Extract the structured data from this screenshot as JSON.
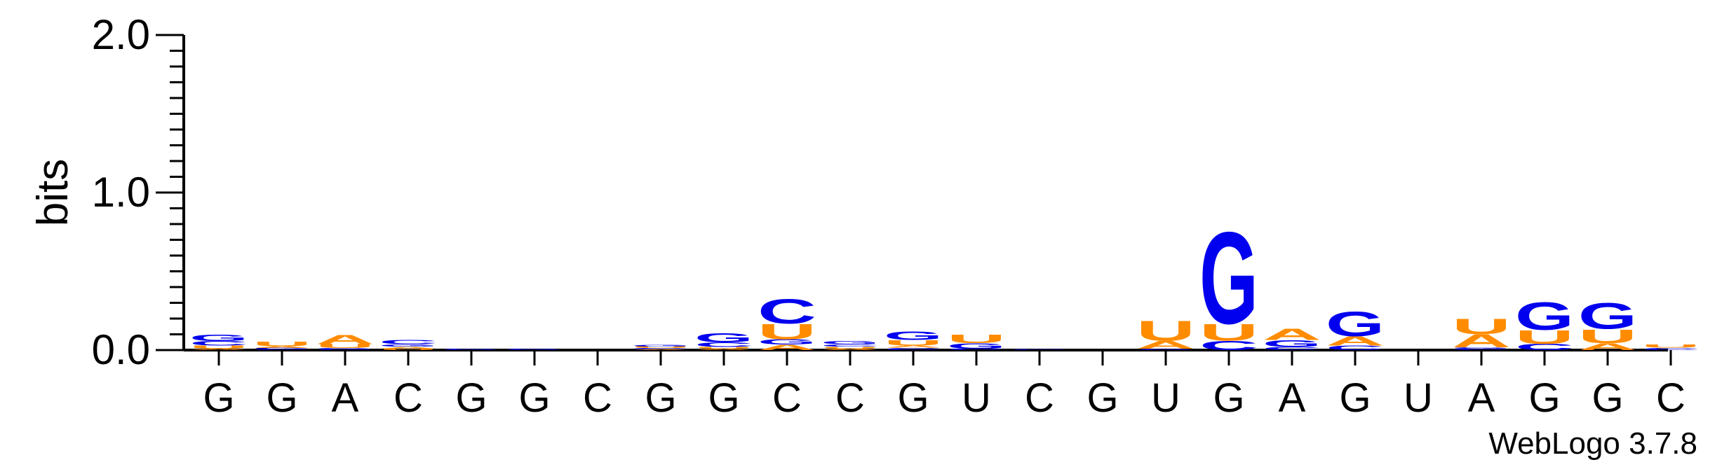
{
  "chart_data": {
    "type": "sequence-logo",
    "ylabel": "bits",
    "ylim": [
      0,
      2.0
    ],
    "yticks": [
      {
        "value": 0.0,
        "label": "0.0"
      },
      {
        "value": 1.0,
        "label": "1.0"
      },
      {
        "value": 2.0,
        "label": "2.0"
      }
    ],
    "categories": [
      "G",
      "G",
      "A",
      "C",
      "G",
      "G",
      "C",
      "G",
      "G",
      "C",
      "C",
      "G",
      "U",
      "C",
      "G",
      "U",
      "G",
      "A",
      "G",
      "U",
      "A",
      "G",
      "G",
      "C"
    ],
    "colors": {
      "G": "#0000ee",
      "C": "#0000ee",
      "A": "#ff8c00",
      "U": "#ff8c00"
    },
    "positions": [
      {
        "stack": [
          {
            "b": "A",
            "h": 0.008
          },
          {
            "b": "U",
            "h": 0.02
          },
          {
            "b": "C",
            "h": 0.03
          },
          {
            "b": "G",
            "h": 0.04
          }
        ]
      },
      {
        "stack": [
          {
            "b": "C",
            "h": 0.006
          },
          {
            "b": "G",
            "h": 0.008
          },
          {
            "b": "A",
            "h": 0.01
          },
          {
            "b": "U",
            "h": 0.03
          }
        ]
      },
      {
        "stack": [
          {
            "b": "C",
            "h": 0.005
          },
          {
            "b": "G",
            "h": 0.008
          },
          {
            "b": "U",
            "h": 0.025
          },
          {
            "b": "A",
            "h": 0.06
          }
        ]
      },
      {
        "stack": [
          {
            "b": "U",
            "h": 0.01
          },
          {
            "b": "A",
            "h": 0.012
          },
          {
            "b": "G",
            "h": 0.015
          },
          {
            "b": "C",
            "h": 0.025
          }
        ]
      },
      {
        "stack": [
          {
            "b": "G",
            "h": 0.01
          }
        ]
      },
      {
        "stack": [
          {
            "b": "G",
            "h": 0.01
          }
        ]
      },
      {
        "stack": []
      },
      {
        "stack": [
          {
            "b": "A",
            "h": 0.005
          },
          {
            "b": "C",
            "h": 0.008
          },
          {
            "b": "U",
            "h": 0.01
          },
          {
            "b": "G",
            "h": 0.012
          }
        ]
      },
      {
        "stack": [
          {
            "b": "A",
            "h": 0.008
          },
          {
            "b": "U",
            "h": 0.012
          },
          {
            "b": "C",
            "h": 0.03
          },
          {
            "b": "G",
            "h": 0.06
          }
        ]
      },
      {
        "stack": [
          {
            "b": "A",
            "h": 0.035
          },
          {
            "b": "G",
            "h": 0.035
          },
          {
            "b": "U",
            "h": 0.1
          },
          {
            "b": "C",
            "h": 0.16
          }
        ]
      },
      {
        "stack": [
          {
            "b": "A",
            "h": 0.01
          },
          {
            "b": "U",
            "h": 0.012
          },
          {
            "b": "C",
            "h": 0.015
          },
          {
            "b": "G",
            "h": 0.02
          }
        ]
      },
      {
        "stack": [
          {
            "b": "C",
            "h": 0.015
          },
          {
            "b": "A",
            "h": 0.015
          },
          {
            "b": "U",
            "h": 0.035
          },
          {
            "b": "G",
            "h": 0.055
          }
        ]
      },
      {
        "stack": [
          {
            "b": "C",
            "h": 0.01
          },
          {
            "b": "G",
            "h": 0.035
          },
          {
            "b": "U",
            "h": 0.055
          }
        ]
      },
      {
        "stack": [
          {
            "b": "C",
            "h": 0.005
          }
        ]
      },
      {
        "stack": []
      },
      {
        "stack": [
          {
            "b": "G",
            "h": 0.01
          },
          {
            "b": "A",
            "h": 0.05
          },
          {
            "b": "U",
            "h": 0.13
          }
        ]
      },
      {
        "stack": [
          {
            "b": "C",
            "h": 0.06
          },
          {
            "b": "U",
            "h": 0.11
          },
          {
            "b": "G",
            "h": 0.6
          }
        ]
      },
      {
        "stack": [
          {
            "b": "C",
            "h": 0.02
          },
          {
            "b": "G",
            "h": 0.045
          },
          {
            "b": "A",
            "h": 0.075
          }
        ]
      },
      {
        "stack": [
          {
            "b": "C",
            "h": 0.03
          },
          {
            "b": "A",
            "h": 0.06
          },
          {
            "b": "G",
            "h": 0.16
          }
        ]
      },
      {
        "stack": []
      },
      {
        "stack": [
          {
            "b": "C",
            "h": 0.008
          },
          {
            "b": "G",
            "h": 0.01
          },
          {
            "b": "A",
            "h": 0.085
          },
          {
            "b": "U",
            "h": 0.1
          }
        ]
      },
      {
        "stack": [
          {
            "b": "C",
            "h": 0.04
          },
          {
            "b": "U",
            "h": 0.09
          },
          {
            "b": "G",
            "h": 0.18
          }
        ]
      },
      {
        "stack": [
          {
            "b": "A",
            "h": 0.045
          },
          {
            "b": "U",
            "h": 0.09
          },
          {
            "b": "G",
            "h": 0.17
          }
        ]
      },
      {
        "stack": [
          {
            "b": "C",
            "h": 0.015
          },
          {
            "b": "U",
            "h": 0.02
          }
        ]
      }
    ]
  },
  "footer": {
    "credit": "WebLogo 3.7.8"
  }
}
